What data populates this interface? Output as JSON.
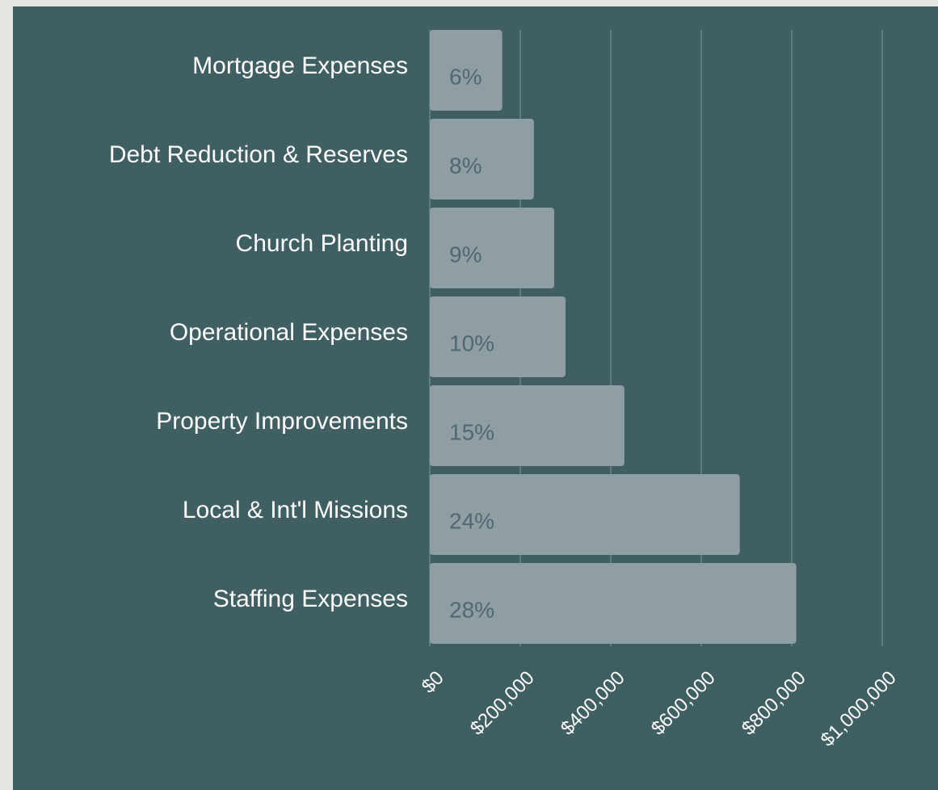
{
  "chart_data": {
    "type": "bar",
    "orientation": "horizontal",
    "categories": [
      "Mortgage Expenses",
      "Debt Reduction & Reserves",
      "Church Planting",
      "Operational Expenses",
      "Property Improvements",
      "Local & Int'l Missions",
      "Staffing Expenses"
    ],
    "values": [
      160000,
      230000,
      275000,
      300000,
      430000,
      685000,
      810000
    ],
    "share_labels": [
      "6%",
      "8%",
      "9%",
      "10%",
      "15%",
      "24%",
      "28%"
    ],
    "color": "#8f9ea3",
    "xlim": [
      0,
      1000000
    ],
    "xticks": [
      {
        "value": 0,
        "label": "$0"
      },
      {
        "value": 200000,
        "label": "$200,000"
      },
      {
        "value": 400000,
        "label": "$400,000"
      },
      {
        "value": 600000,
        "label": "$600,000"
      },
      {
        "value": 800000,
        "label": "$800,000"
      },
      {
        "value": 1000000,
        "label": "$1,000,000"
      }
    ],
    "grid": true
  }
}
